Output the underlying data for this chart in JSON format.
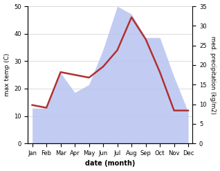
{
  "months": [
    "Jan",
    "Feb",
    "Mar",
    "Apr",
    "May",
    "Jun",
    "Jul",
    "Aug",
    "Sep",
    "Oct",
    "Nov",
    "Dec"
  ],
  "temperature": [
    14,
    13,
    26,
    25,
    24,
    28,
    34,
    46,
    38,
    26,
    12,
    12
  ],
  "precipitation": [
    9,
    9,
    18,
    13,
    15,
    24,
    35,
    33,
    27,
    27,
    17,
    8
  ],
  "temp_color": "#b03030",
  "precip_color": "#b8c4f0",
  "title": "",
  "xlabel": "date (month)",
  "ylabel_left": "max temp (C)",
  "ylabel_right": "med. precipitation (kg/m2)",
  "ylim_left": [
    0,
    50
  ],
  "ylim_right": [
    0,
    35
  ],
  "bg_color": "#ffffff",
  "temp_linewidth": 1.8,
  "grid_color": "#cccccc"
}
